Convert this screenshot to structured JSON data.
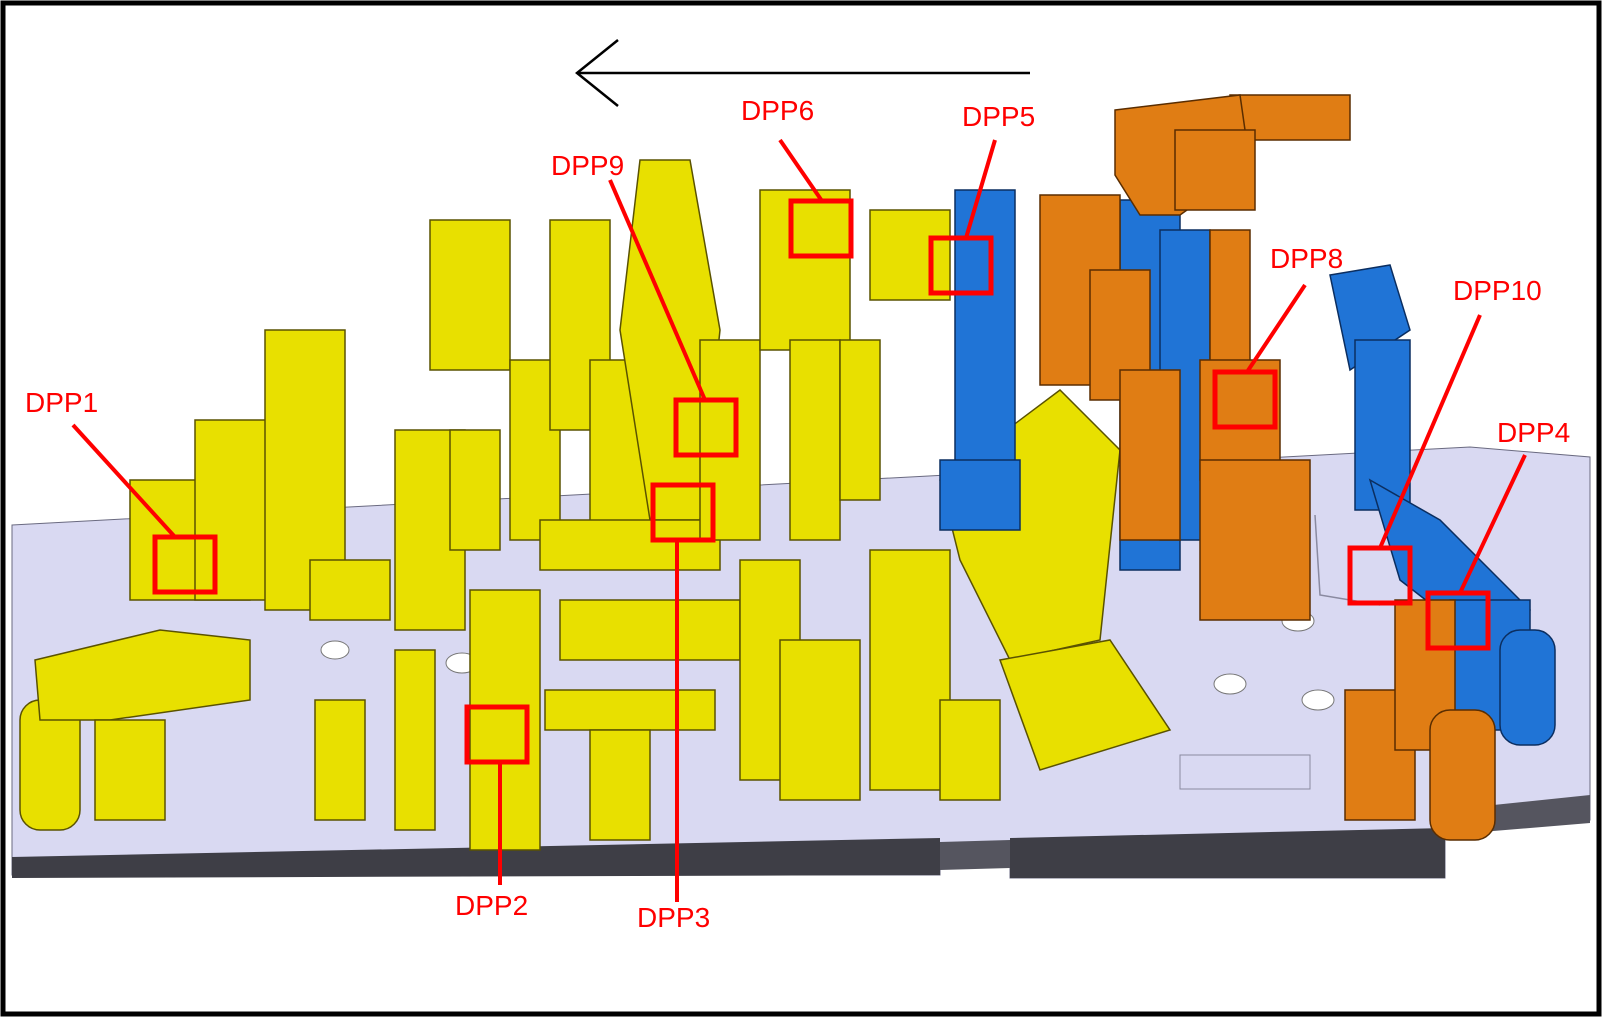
{
  "colors": {
    "annotation": "#ff0000",
    "fixture_yellow": "#e8e000",
    "fixture_orange": "#e07d14",
    "fixture_blue": "#2074d6",
    "base_plate": "#d9d9f2",
    "base_edge": "#4a4a4a",
    "arrow": "#000000"
  },
  "direction_arrow": {
    "icon": "arrow-left-icon"
  },
  "points": [
    {
      "id": "dpp1",
      "label": "DPP1"
    },
    {
      "id": "dpp2",
      "label": "DPP2"
    },
    {
      "id": "dpp3",
      "label": "DPP3"
    },
    {
      "id": "dpp4",
      "label": "DPP4"
    },
    {
      "id": "dpp5",
      "label": "DPP5"
    },
    {
      "id": "dpp6",
      "label": "DPP6"
    },
    {
      "id": "dpp8",
      "label": "DPP8"
    },
    {
      "id": "dpp9",
      "label": "DPP9"
    },
    {
      "id": "dpp10",
      "label": "DPP10"
    }
  ]
}
